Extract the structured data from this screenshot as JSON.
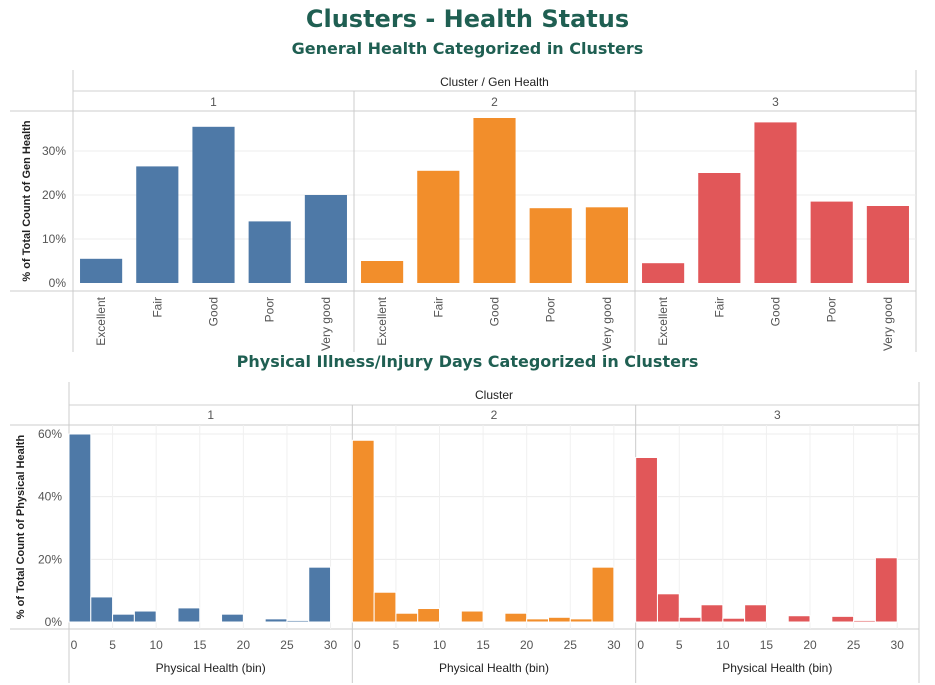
{
  "page": {
    "title": "Clusters - Health Status",
    "subtitle1": "General Health Categorized in Clusters",
    "subtitle2": "Physical Illness/Injury Days Categorized in Clusters"
  },
  "chart_data": [
    {
      "type": "bar",
      "title": "General Health Categorized in Clusters",
      "column_header": "Cluster  /  Gen Health",
      "ylabel": "% of Total Count of Gen Health",
      "ylim": [
        0,
        38
      ],
      "yticks": [
        0,
        10,
        20,
        30
      ],
      "ytick_labels": [
        "0%",
        "10%",
        "20%",
        "30%"
      ],
      "categories": [
        "Excellent",
        "Fair",
        "Good",
        "Poor",
        "Very good"
      ],
      "grid": true,
      "series": [
        {
          "name": "1",
          "color": "#4e79a7",
          "values": [
            5.5,
            26.5,
            35.5,
            14.0,
            20.0
          ]
        },
        {
          "name": "2",
          "color": "#f28e2b",
          "values": [
            5.0,
            25.5,
            37.5,
            17.0,
            17.2
          ]
        },
        {
          "name": "3",
          "color": "#e15759",
          "values": [
            4.5,
            25.0,
            36.5,
            18.5,
            17.5
          ]
        }
      ]
    },
    {
      "type": "bar",
      "title": "Physical Illness/Injury Days Categorized in Clusters",
      "column_header": "Cluster",
      "xlabel": "Physical Health (bin)",
      "ylabel": "% of Total Count of Physical Health",
      "ylim": [
        0,
        62
      ],
      "yticks": [
        0,
        20,
        40,
        60
      ],
      "ytick_labels": [
        "0%",
        "20%",
        "40%",
        "60%"
      ],
      "xlim": [
        0,
        30
      ],
      "xticks": [
        0,
        5,
        10,
        15,
        20,
        25,
        30
      ],
      "bin_width": 2.5,
      "bins": [
        0,
        2.5,
        5,
        7.5,
        10,
        12.5,
        15,
        17.5,
        20,
        22.5,
        25,
        27.5
      ],
      "grid": true,
      "series": [
        {
          "name": "1",
          "color": "#4e79a7",
          "values": [
            60.0,
            8.0,
            2.5,
            3.5,
            0,
            4.5,
            0,
            2.5,
            0,
            1.0,
            0.5,
            17.5
          ]
        },
        {
          "name": "2",
          "color": "#f28e2b",
          "values": [
            58.0,
            9.5,
            2.8,
            4.3,
            0,
            3.5,
            0,
            2.8,
            1.0,
            1.5,
            1.0,
            17.5
          ]
        },
        {
          "name": "3",
          "color": "#e15759",
          "values": [
            52.5,
            9.0,
            1.5,
            5.5,
            1.2,
            5.5,
            0,
            2.0,
            0,
            1.8,
            0.5,
            20.5
          ]
        }
      ]
    }
  ]
}
